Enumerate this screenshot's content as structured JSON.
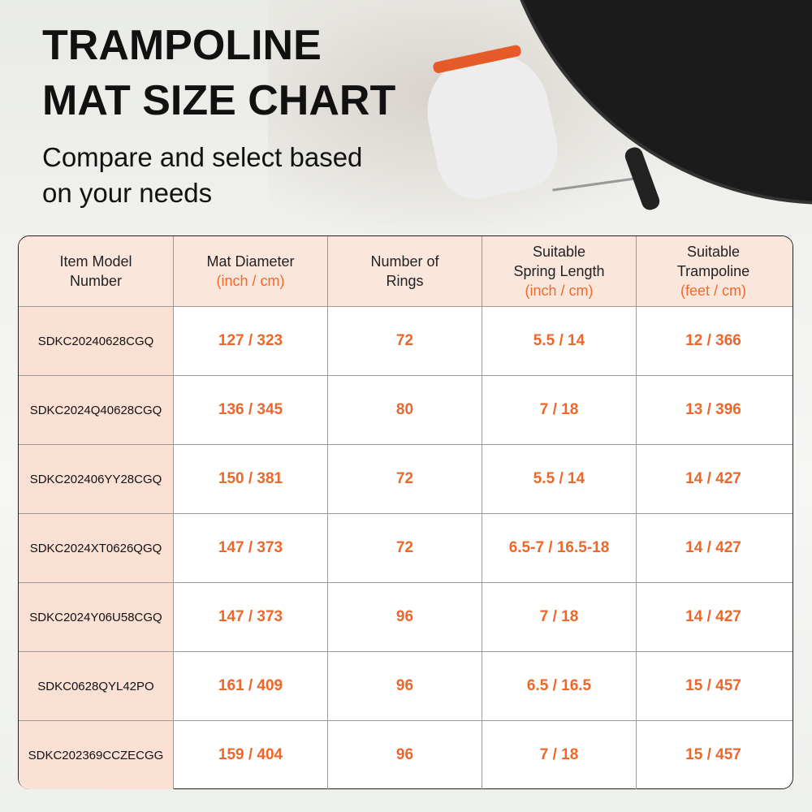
{
  "title_lines": [
    "TRAMPOLINE",
    "MAT SIZE CHART"
  ],
  "subtitle_lines": [
    "Compare and select based",
    "on your needs"
  ],
  "colors": {
    "accent": "#ee6629",
    "model_bg": "#fbe0d4",
    "header_bg": "#fbe6dc"
  },
  "table": {
    "headers": [
      {
        "label": [
          "Item Model",
          "Number"
        ],
        "unit": ""
      },
      {
        "label": [
          "Mat Diameter"
        ],
        "unit": "(inch / cm)"
      },
      {
        "label": [
          "Number of",
          "Rings"
        ],
        "unit": ""
      },
      {
        "label": [
          "Suitable",
          "Spring Length"
        ],
        "unit": "(inch / cm)"
      },
      {
        "label": [
          "Suitable",
          "Trampoline"
        ],
        "unit": "(feet / cm)"
      }
    ],
    "rows": [
      [
        "SDKC20240628CGQ",
        "127 / 323",
        "72",
        "5.5 / 14",
        "12 / 366"
      ],
      [
        "SDKC2024Q40628CGQ",
        "136 / 345",
        "80",
        "7 / 18",
        "13 / 396"
      ],
      [
        "SDKC202406YY28CGQ",
        "150 / 381",
        "72",
        "5.5 / 14",
        "14 / 427"
      ],
      [
        "SDKC2024XT0626QGQ",
        "147 / 373",
        "72",
        "6.5-7 / 16.5-18",
        "14 / 427"
      ],
      [
        "SDKC2024Y06U58CGQ",
        "147 / 373",
        "96",
        "7 / 18",
        "14 / 427"
      ],
      [
        "SDKC0628QYL42PO",
        "161 / 409",
        "96",
        "6.5 / 16.5",
        "15 / 457"
      ],
      [
        "SDKC202369CCZECGG",
        "159 / 404",
        "96",
        "7 / 18",
        "15 / 457"
      ]
    ]
  }
}
